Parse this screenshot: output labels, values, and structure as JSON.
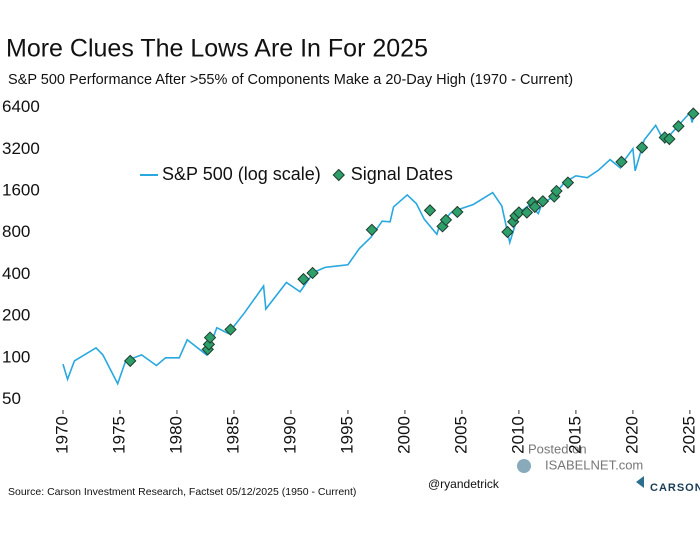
{
  "chart_data": {
    "type": "line",
    "title": "More Clues The Lows Are In For 2025",
    "subtitle": "S&P 500 Performance After >55% of Components Make a 20-Day High (1970 - Current)",
    "source": "Source: Carson Investment Research, Factset 05/12/2025 (1950 - Current)",
    "annotations": [
      "@ryandetrick",
      "Posted on",
      "ISABELNET.com",
      "CARSON"
    ],
    "yscale": "log",
    "legend": "upper center",
    "xlim": [
      1969.3,
      2025.45
    ],
    "xticks": [
      1970,
      1975,
      1980,
      1985,
      1990,
      1995,
      2000,
      2005,
      2010,
      2015,
      2020,
      2025
    ],
    "ylim": [
      42,
      7900
    ],
    "yticks": [
      50,
      100,
      200,
      400,
      800,
      1600,
      3200,
      6400
    ],
    "series": [
      {
        "name": "S&P 500 (log scale)",
        "color": "#29a8e0",
        "marker": "line",
        "x": [
          1970,
          1970.4,
          1971,
          1972.9,
          1973.5,
          1974.8,
          1975.5,
          1976.9,
          1978.2,
          1979,
          1980.2,
          1980.9,
          1982.6,
          1983.5,
          1984.5,
          1985.9,
          1987.6,
          1987.8,
          1989.6,
          1990.8,
          1992,
          1993,
          1994,
          1995,
          1996,
          1997,
          1998,
          1998.7,
          1999,
          2000.2,
          2001,
          2001.7,
          2002.8,
          2003,
          2004,
          2005,
          2006,
          2007.7,
          2008.5,
          2009.2,
          2010,
          2011,
          2011.7,
          2012,
          2013,
          2014,
          2015,
          2016,
          2017,
          2018,
          2018.9,
          2019,
          2020,
          2020.2,
          2021,
          2022,
          2022.8,
          2023,
          2024,
          2025,
          2025.2,
          2025.36
        ],
        "values": [
          90,
          70,
          95,
          118,
          105,
          65,
          95,
          105,
          88,
          100,
          100,
          135,
          105,
          165,
          150,
          210,
          330,
          225,
          350,
          300,
          415,
          450,
          460,
          470,
          615,
          740,
          970,
          960,
          1229,
          1500,
          1300,
          1000,
          780,
          880,
          1110,
          1200,
          1280,
          1560,
          1250,
          680,
          1115,
          1280,
          1100,
          1280,
          1460,
          1850,
          2060,
          2000,
          2270,
          2700,
          2350,
          2500,
          3230,
          2240,
          3750,
          4770,
          3580,
          3840,
          4770,
          5880,
          5000,
          5800
        ]
      },
      {
        "name": "Signal Dates",
        "color": "#2e9e6b",
        "marker": "diamond",
        "x": [
          1975.9,
          1982.7,
          1982.8,
          1982.9,
          1984.7,
          1991.1,
          1991.9,
          1997.1,
          2002.2,
          2003.3,
          2003.6,
          2004.6,
          2009.0,
          2009.5,
          2009.7,
          2010.0,
          2010.7,
          2011.2,
          2011.4,
          2012.1,
          2013.1,
          2013.3,
          2014.3,
          2019.0,
          2020.8,
          2022.8,
          2023.2,
          2024.0,
          2025.3
        ],
        "values": [
          95,
          115,
          125,
          140,
          160,
          370,
          410,
          840,
          1160,
          890,
          990,
          1130,
          810,
          960,
          1060,
          1120,
          1120,
          1320,
          1230,
          1350,
          1460,
          1600,
          1840,
          2600,
          3300,
          3900,
          3800,
          4700,
          5800
        ]
      }
    ]
  }
}
